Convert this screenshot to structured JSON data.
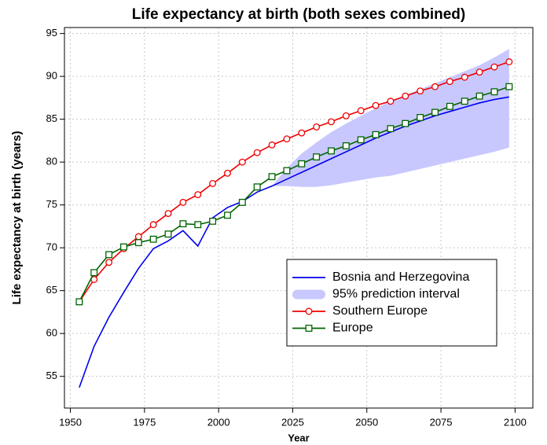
{
  "chart_data": {
    "type": "line",
    "title": "Life expectancy at birth (both sexes combined)",
    "x_label": "Year",
    "y_label": "Life expectancy at birth (years)",
    "xlim": [
      1948,
      2106
    ],
    "ylim": [
      51.3,
      95.7
    ],
    "xticks": [
      1950,
      1975,
      2000,
      2025,
      2050,
      2075,
      2100
    ],
    "yticks": [
      55,
      60,
      65,
      70,
      75,
      80,
      85,
      90,
      95
    ],
    "grid": true,
    "legend": "lower right",
    "x": [
      1953,
      1958,
      1963,
      1968,
      1973,
      1978,
      1983,
      1988,
      1993,
      1998,
      2003,
      2008,
      2013,
      2018,
      2023,
      2028,
      2033,
      2038,
      2043,
      2048,
      2053,
      2058,
      2063,
      2068,
      2073,
      2078,
      2083,
      2088,
      2093,
      2098
    ],
    "series": [
      {
        "name": "Bosnia and Herzegovina",
        "color": "#0000ee",
        "marker": "none",
        "values": [
          53.7,
          58.5,
          61.9,
          64.8,
          67.6,
          69.9,
          70.8,
          72.0,
          70.2,
          73.5,
          74.7,
          75.4,
          76.5,
          77.2,
          78.0,
          78.8,
          79.6,
          80.4,
          81.2,
          82.0,
          82.8,
          83.5,
          84.2,
          84.8,
          85.4,
          85.9,
          86.4,
          86.9,
          87.3,
          87.6
        ]
      },
      {
        "name": "Southern Europe",
        "color": "#ee0000",
        "marker": "circle",
        "values": [
          63.7,
          66.3,
          68.3,
          69.9,
          71.3,
          72.7,
          74.0,
          75.3,
          76.2,
          77.5,
          78.7,
          80.0,
          81.1,
          82.0,
          82.7,
          83.4,
          84.1,
          84.7,
          85.4,
          86.0,
          86.6,
          87.1,
          87.7,
          88.3,
          88.8,
          89.4,
          89.9,
          90.5,
          91.1,
          91.7
        ]
      },
      {
        "name": "Europe",
        "color": "#006400",
        "marker": "square",
        "values": [
          63.7,
          67.1,
          69.2,
          70.1,
          70.6,
          71.0,
          71.6,
          72.8,
          72.7,
          73.1,
          73.8,
          75.3,
          77.1,
          78.3,
          79.0,
          79.8,
          80.6,
          81.3,
          81.9,
          82.6,
          83.2,
          83.9,
          84.5,
          85.2,
          85.8,
          86.5,
          87.1,
          87.7,
          88.2,
          88.8
        ]
      }
    ],
    "band": {
      "name": "95% prediction interval",
      "color": "#c8c8ff",
      "x": [
        2018,
        2023,
        2028,
        2033,
        2038,
        2043,
        2048,
        2053,
        2058,
        2063,
        2068,
        2073,
        2078,
        2083,
        2088,
        2093,
        2098
      ],
      "lower": [
        77.2,
        77.2,
        77.1,
        77.1,
        77.3,
        77.6,
        77.9,
        78.2,
        78.4,
        78.8,
        79.2,
        79.6,
        80.0,
        80.4,
        80.8,
        81.2,
        81.7
      ],
      "upper": [
        77.2,
        79.3,
        81.0,
        82.3,
        83.5,
        84.5,
        85.4,
        86.3,
        87.1,
        87.8,
        88.5,
        89.2,
        89.9,
        90.6,
        91.3,
        92.2,
        93.2
      ]
    }
  }
}
